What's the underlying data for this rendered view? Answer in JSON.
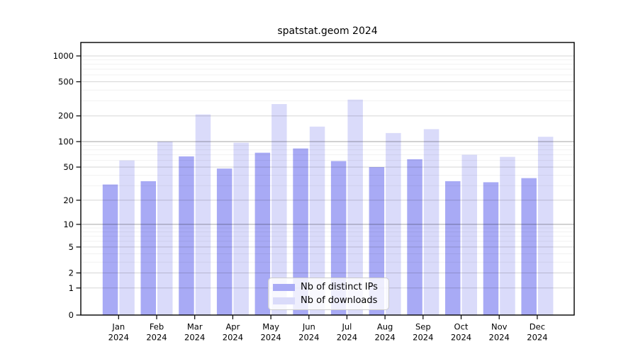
{
  "page": {
    "background": "#ffffff"
  },
  "chart_data": {
    "type": "bar",
    "title": "spatstat.geom 2024",
    "x_categories": [
      "Jan",
      "Feb",
      "Mar",
      "Apr",
      "May",
      "Jun",
      "Jul",
      "Aug",
      "Sep",
      "Oct",
      "Nov",
      "Dec"
    ],
    "x_sub_label": "2024",
    "series": [
      {
        "name": "Nb of distinct IPs",
        "color": "#a8aaf5",
        "values": [
          31,
          34,
          67,
          48,
          74,
          83,
          59,
          50,
          62,
          34,
          33,
          37
        ]
      },
      {
        "name": "Nb of downloads",
        "color": "#dadbfa",
        "values": [
          60,
          100,
          208,
          97,
          275,
          150,
          310,
          126,
          140,
          70,
          66,
          114
        ]
      }
    ],
    "y_axis": {
      "scale": "log1p",
      "ticks": [
        0,
        1,
        2,
        5,
        10,
        20,
        50,
        100,
        200,
        500,
        1000
      ],
      "range": [
        0,
        1000
      ]
    },
    "grid": {
      "orientation": "horizontal",
      "major_line_color": "#a6a6a6",
      "tick_line_color": "#d6d6d6",
      "minor_line_color": "#ededed"
    },
    "legend": {
      "position": "bottom-center-inside"
    }
  }
}
